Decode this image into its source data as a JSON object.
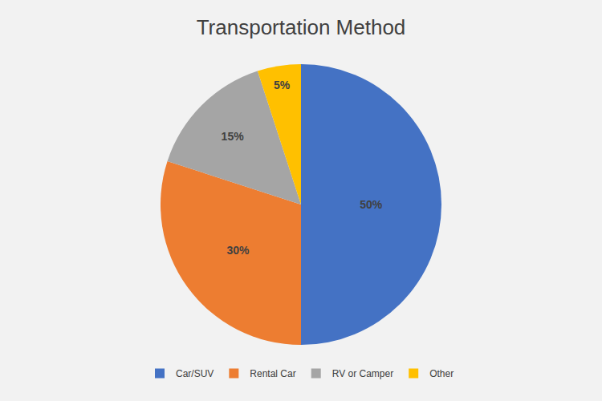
{
  "chart_data": {
    "type": "pie",
    "title": "Transportation Method",
    "categories": [
      "Car/SUV",
      "Rental Car",
      "RV or Camper",
      "Other"
    ],
    "values": [
      50,
      30,
      15,
      5
    ],
    "value_labels": [
      "50%",
      "30%",
      "15%",
      "5%"
    ],
    "colors": [
      "#4472C4",
      "#ED7D31",
      "#A5A5A5",
      "#FFC000"
    ],
    "data_labels": true,
    "legend": "bottom"
  }
}
